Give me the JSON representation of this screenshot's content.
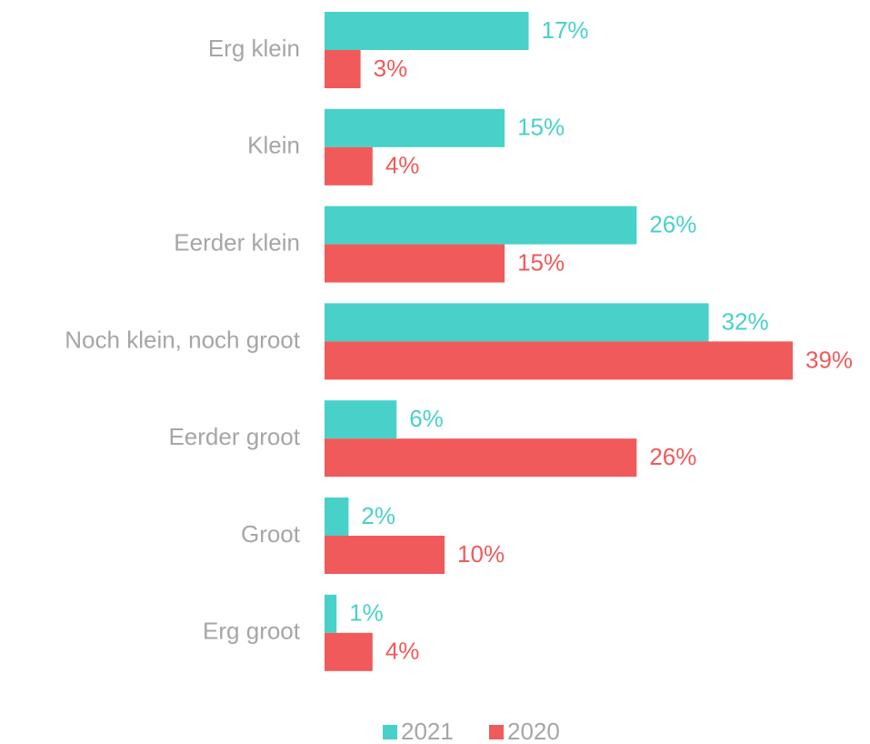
{
  "chart_data": {
    "type": "bar",
    "orientation": "horizontal",
    "categories": [
      "Erg klein",
      "Klein",
      "Eerder klein",
      "Noch klein, noch groot",
      "Eerder groot",
      "Groot",
      "Erg groot"
    ],
    "series": [
      {
        "name": "2021",
        "color": "#48d1c8",
        "values": [
          17,
          15,
          26,
          32,
          6,
          2,
          1
        ],
        "value_labels": [
          "17%",
          "15%",
          "26%",
          "32%",
          "6%",
          "2%",
          "1%"
        ]
      },
      {
        "name": "2020",
        "color": "#f05a5a",
        "values": [
          3,
          4,
          15,
          39,
          26,
          10,
          4
        ],
        "value_labels": [
          "3%",
          "4%",
          "15%",
          "39%",
          "26%",
          "10%",
          "4%"
        ]
      }
    ],
    "legend": "bottom"
  }
}
